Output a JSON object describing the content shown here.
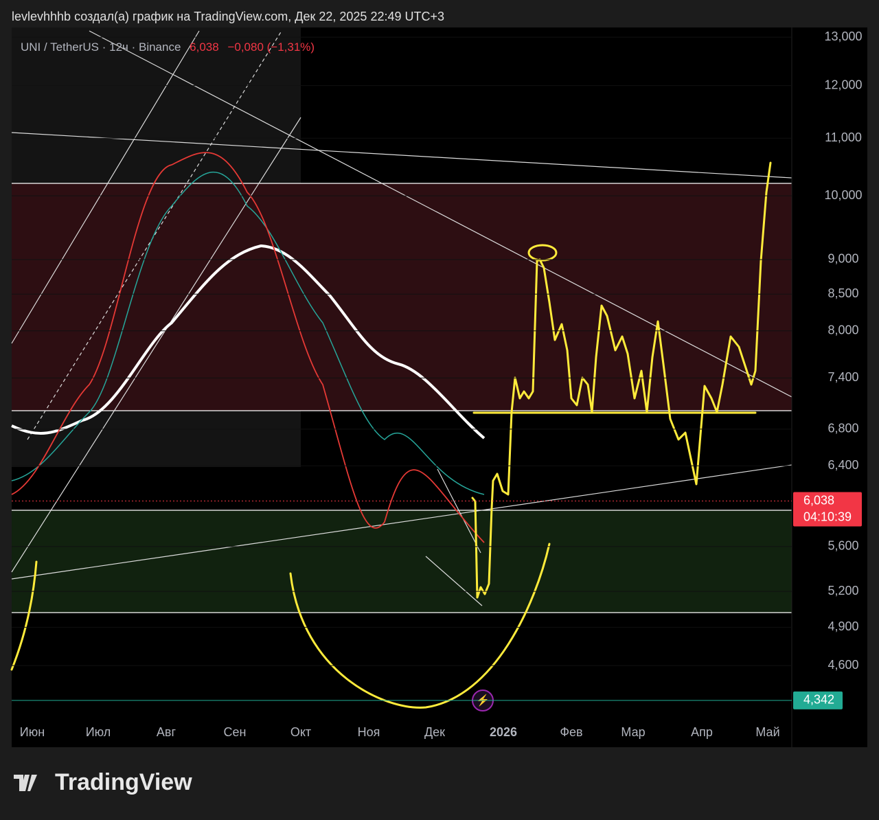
{
  "header": {
    "text": "levlevhhhb создал(а) график на TradingView.com, Дек 22, 2025 22:49 UTC+3"
  },
  "legend": {
    "symbol": "UNI / TetherUS · 12ч · Binance",
    "price": "6,038",
    "change": "−0,080 (−1,31%)"
  },
  "price_axis": {
    "log_scale": true,
    "ylim": [
      4.22,
      13.21
    ],
    "ticks": [
      {
        "value": 13,
        "label": "13,000"
      },
      {
        "value": 12,
        "label": "12,000"
      },
      {
        "value": 11,
        "label": "11,000"
      },
      {
        "value": 10,
        "label": "10,000"
      },
      {
        "value": 9,
        "label": "9,000"
      },
      {
        "value": 8.5,
        "label": "8,500"
      },
      {
        "value": 8,
        "label": "8,000"
      },
      {
        "value": 7.4,
        "label": "7,400"
      },
      {
        "value": 6.8,
        "label": "6,800"
      },
      {
        "value": 6.4,
        "label": "6,400"
      },
      {
        "value": 5.6,
        "label": "5,600"
      },
      {
        "value": 5.2,
        "label": "5,200"
      },
      {
        "value": 4.9,
        "label": "4,900"
      },
      {
        "value": 4.6,
        "label": "4,600"
      }
    ]
  },
  "price_labels": [
    {
      "value": 6.038,
      "label": "6,038",
      "timer": "04:10:39",
      "color": "#f23645"
    },
    {
      "value": 4.342,
      "label": "4,342",
      "color": "#22ab94"
    }
  ],
  "time_axis": {
    "labels": [
      "Июн",
      "Июл",
      "Авг",
      "Сен",
      "Окт",
      "Ноя",
      "Дек",
      "2026",
      "Фев",
      "Мар",
      "Апр",
      "Май"
    ]
  },
  "branding": "TradingView"
}
